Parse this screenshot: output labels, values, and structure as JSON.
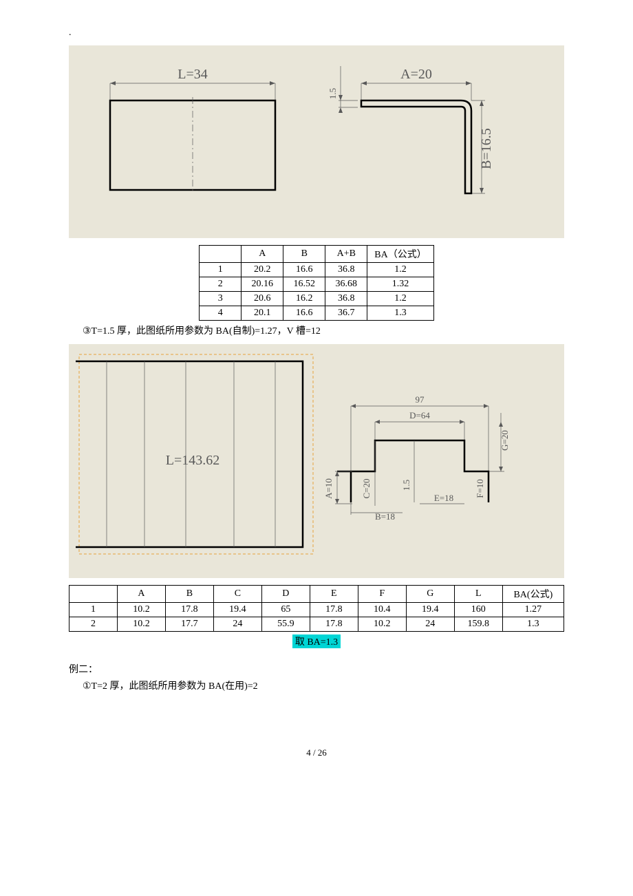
{
  "page_dot": ".",
  "diagram1": {
    "bg": "#e9e6d9",
    "L_label": "L=34",
    "A_label": "A=20",
    "B_label": "B=16.5",
    "t_label": "1.5"
  },
  "table1": {
    "headers": [
      "",
      "A",
      "B",
      "A+B",
      "BA（公式）"
    ],
    "rows": [
      [
        "1",
        "20.2",
        "16.6",
        "36.8",
        "1.2"
      ],
      [
        "2",
        "20.16",
        "16.52",
        "36.68",
        "1.32"
      ],
      [
        "3",
        "20.6",
        "16.2",
        "36.8",
        "1.2"
      ],
      [
        "4",
        "20.1",
        "16.6",
        "36.7",
        "1.3"
      ]
    ]
  },
  "note1": "③T=1.5 厚，此图纸所用参数为 BA(自制)=1.27，V 槽=12",
  "diagram2": {
    "bg": "#e9e6d9",
    "L_label": "L=143.62",
    "top_dim": "97",
    "D_label": "D=64",
    "G_label": "G=20",
    "A_label": "A=10",
    "B_label": "B=18",
    "C_label": "C=20",
    "E_label": "E=18",
    "F_label": "F=10",
    "t_label": "1.5"
  },
  "table2": {
    "headers": [
      "",
      "A",
      "B",
      "C",
      "D",
      "E",
      "F",
      "G",
      "L",
      "BA(公式)"
    ],
    "rows": [
      [
        "1",
        "10.2",
        "17.8",
        "19.4",
        "65",
        "17.8",
        "10.4",
        "19.4",
        "160",
        "1.27"
      ],
      [
        "2",
        "10.2",
        "17.7",
        "24",
        "55.9",
        "17.8",
        "10.2",
        "24",
        "159.8",
        "1.3"
      ]
    ]
  },
  "ba_note": "取 BA=1.3",
  "example2_title": "例二：",
  "example2_line": "①T=2 厚，此图纸所用参数为 BA(在用)=2",
  "footer": "4  / 26"
}
